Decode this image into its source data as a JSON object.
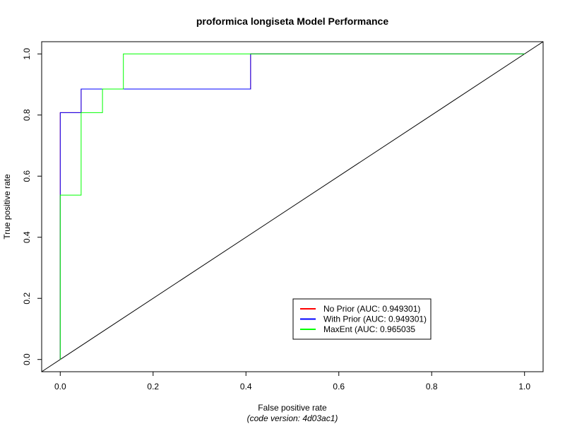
{
  "chart_data": {
    "type": "line",
    "title": "proformica longiseta Model Performance",
    "xlabel": "False positive rate",
    "ylabel": "True positive rate",
    "xlim": [
      -0.04,
      1.04
    ],
    "ylim": [
      -0.04,
      1.04
    ],
    "x_ticks": [
      "0.0",
      "0.2",
      "0.4",
      "0.6",
      "0.8",
      "1.0"
    ],
    "y_ticks": [
      "0.0",
      "0.2",
      "0.4",
      "0.6",
      "0.8",
      "1.0"
    ],
    "grid": false,
    "legend_position": "bottom-right",
    "diagonal_reference": {
      "x": [
        -0.04,
        1.04
      ],
      "y": [
        -0.04,
        1.04
      ],
      "color": "#000000"
    },
    "series": [
      {
        "name": "No Prior (AUC: 0.949301)",
        "color": "#ff0000",
        "x": [
          0,
          0,
          0.045,
          0.045,
          0.41,
          0.41,
          1.0
        ],
        "y": [
          0,
          0.808,
          0.808,
          0.885,
          0.885,
          1.0,
          1.0
        ]
      },
      {
        "name": "With Prior (AUC: 0.949301)",
        "color": "#0000ff",
        "x": [
          0,
          0,
          0.045,
          0.045,
          0.41,
          0.41,
          1.0
        ],
        "y": [
          0,
          0.808,
          0.808,
          0.885,
          0.885,
          1.0,
          1.0
        ]
      },
      {
        "name": "MaxEnt (AUC: 0.965035",
        "color": "#00ff00",
        "x": [
          0,
          0,
          0.045,
          0.045,
          0.091,
          0.091,
          0.136,
          0.136,
          1.0
        ],
        "y": [
          0,
          0.538,
          0.538,
          0.808,
          0.808,
          0.885,
          0.885,
          1.0,
          1.0
        ]
      }
    ]
  },
  "footer": {
    "code_version": "(code version: 4d03ac1)",
    "code_version_color": "#ff0000"
  }
}
